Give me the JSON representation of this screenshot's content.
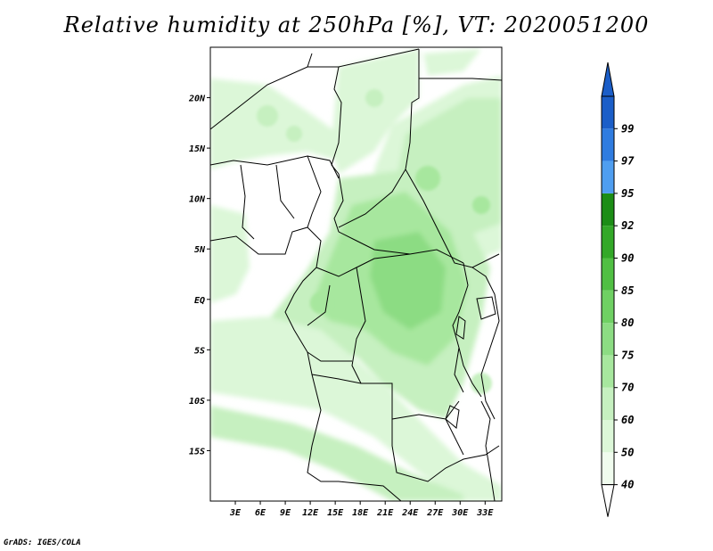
{
  "title": "Relative humidity at 250hPa [%], VT: 2020051200",
  "credit": "GrADS: IGES/COLA",
  "map": {
    "lon_range": [
      0,
      35
    ],
    "lat_range": [
      -20,
      25
    ],
    "lat_ticks": [
      {
        "value": 20,
        "label": "20N"
      },
      {
        "value": 15,
        "label": "15N"
      },
      {
        "value": 10,
        "label": "10N"
      },
      {
        "value": 5,
        "label": "5N"
      },
      {
        "value": 0,
        "label": "EQ"
      },
      {
        "value": -5,
        "label": "5S"
      },
      {
        "value": -10,
        "label": "10S"
      },
      {
        "value": -15,
        "label": "15S"
      }
    ],
    "lon_ticks": [
      {
        "value": 3,
        "label": "3E"
      },
      {
        "value": 6,
        "label": "6E"
      },
      {
        "value": 9,
        "label": "9E"
      },
      {
        "value": 12,
        "label": "12E"
      },
      {
        "value": 15,
        "label": "15E"
      },
      {
        "value": 18,
        "label": "18E"
      },
      {
        "value": 21,
        "label": "21E"
      },
      {
        "value": 24,
        "label": "24E"
      },
      {
        "value": 27,
        "label": "27E"
      },
      {
        "value": 30,
        "label": "30E"
      },
      {
        "value": 33,
        "label": "33E"
      }
    ]
  },
  "colorbar": {
    "levels": [
      {
        "label": "40",
        "color": "#f0fcee"
      },
      {
        "label": "50",
        "color": "#dcf7d8"
      },
      {
        "label": "60",
        "color": "#c6f0c0"
      },
      {
        "label": "70",
        "color": "#a7e79e"
      },
      {
        "label": "75",
        "color": "#8cdc83"
      },
      {
        "label": "80",
        "color": "#6fd063"
      },
      {
        "label": "85",
        "color": "#50bf43"
      },
      {
        "label": "90",
        "color": "#33a828"
      },
      {
        "label": "92",
        "color": "#1c8d16"
      },
      {
        "label": "95",
        "color": "#4f9ef0"
      },
      {
        "label": "97",
        "color": "#2f7ce0"
      },
      {
        "label": "99",
        "color": "#1b5ec8"
      }
    ],
    "top_color": "#1b5ec8",
    "bottom_color": "#ffffff"
  }
}
